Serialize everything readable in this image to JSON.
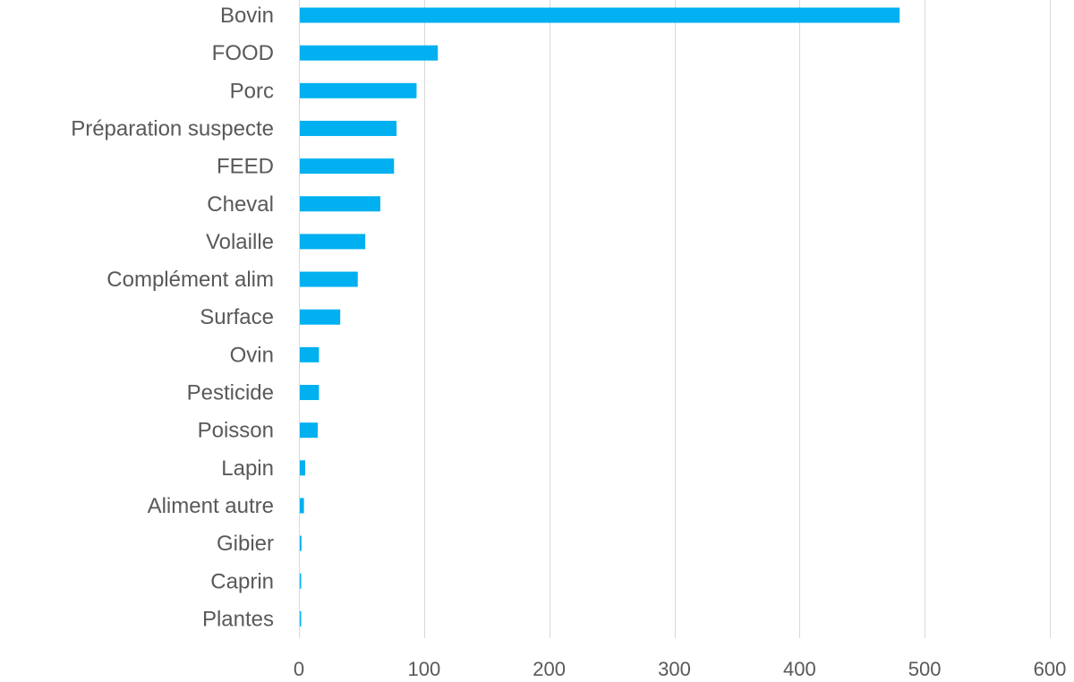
{
  "chart_data": {
    "type": "bar",
    "orientation": "horizontal",
    "categories": [
      "Bovin",
      "FOOD",
      "Porc",
      "Préparation suspecte",
      "FEED",
      "Cheval",
      "Volaille",
      "Complément alim",
      "Surface",
      "Ovin",
      "Pesticide",
      "Poisson",
      "Lapin",
      "Aliment autre",
      "Gibier",
      "Caprin",
      "Plantes"
    ],
    "values": [
      480,
      111,
      94,
      78,
      76,
      65,
      53,
      47,
      33,
      16,
      16,
      15,
      5,
      4,
      2,
      1,
      1
    ],
    "xlim": [
      0,
      600
    ],
    "x_ticks": [
      0,
      100,
      200,
      300,
      400,
      500,
      600
    ],
    "x_tick_labels": [
      "0",
      "100",
      "200",
      "300",
      "400",
      "500",
      "600"
    ],
    "title": "",
    "xlabel": "",
    "ylabel": "",
    "grid": "vertical",
    "legend": "none",
    "bar_color": "#00B0F0",
    "grid_color": "#D9D9D9",
    "label_color": "#595959"
  }
}
